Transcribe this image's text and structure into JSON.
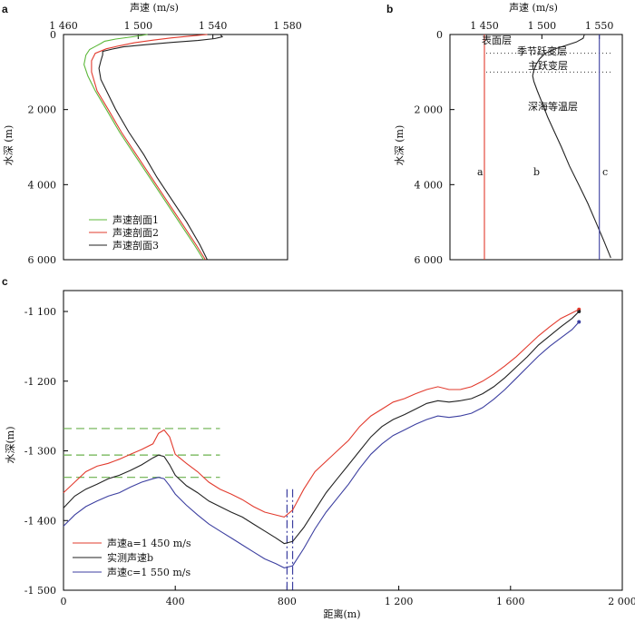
{
  "chart_data": [
    {
      "panel": "a",
      "type": "line",
      "xlabel": "声速 (m/s)",
      "ylabel": "水深 (m)",
      "xlim": [
        1460,
        1580
      ],
      "ylim": [
        0,
        6000
      ],
      "y_inverted": true,
      "x_axis_position": "top",
      "xticks": [
        1460,
        1500,
        1540,
        1580
      ],
      "xtick_labels": [
        "1 460",
        "1 500",
        "1 540",
        "1 580"
      ],
      "yticks": [
        0,
        2000,
        4000,
        6000
      ],
      "ytick_labels": [
        "0",
        "2 000",
        "4 000",
        "6 000"
      ],
      "legend_position": "bottom-left",
      "series": [
        {
          "name": "声速剖面1",
          "color": "#5cb83a",
          "points": [
            [
              1505,
              0
            ],
            [
              1497,
              60
            ],
            [
              1488,
              120
            ],
            [
              1482,
              180
            ],
            [
              1480,
              240
            ],
            [
              1477,
              320
            ],
            [
              1474,
              400
            ],
            [
              1472,
              550
            ],
            [
              1471,
              800
            ],
            [
              1473,
              1100
            ],
            [
              1477,
              1500
            ],
            [
              1483,
              2000
            ],
            [
              1490,
              2600
            ],
            [
              1498,
              3200
            ],
            [
              1506,
              3800
            ],
            [
              1514,
              4400
            ],
            [
              1522,
              5000
            ],
            [
              1530,
              5600
            ],
            [
              1535,
              6000
            ]
          ]
        },
        {
          "name": "声速剖面2",
          "color": "#e23b2e",
          "points": [
            [
              1537,
              0
            ],
            [
              1528,
              40
            ],
            [
              1518,
              90
            ],
            [
              1508,
              150
            ],
            [
              1498,
              220
            ],
            [
              1490,
              300
            ],
            [
              1483,
              380
            ],
            [
              1477,
              500
            ],
            [
              1475,
              700
            ],
            [
              1475,
              1000
            ],
            [
              1478,
              1500
            ],
            [
              1484,
              2000
            ],
            [
              1491,
              2600
            ],
            [
              1499,
              3200
            ],
            [
              1507,
              3800
            ],
            [
              1515,
              4400
            ],
            [
              1523,
              5000
            ],
            [
              1531,
              5600
            ],
            [
              1536,
              6000
            ]
          ]
        },
        {
          "name": "声速剖面3",
          "color": "#222222",
          "points": [
            [
              1544,
              0
            ],
            [
              1545,
              60
            ],
            [
              1541,
              110
            ],
            [
              1532,
              160
            ],
            [
              1518,
              210
            ],
            [
              1504,
              270
            ],
            [
              1492,
              330
            ],
            [
              1486,
              390
            ],
            [
              1481,
              450
            ],
            [
              1481,
              540
            ],
            [
              1480,
              700
            ],
            [
              1479,
              900
            ],
            [
              1480,
              1200
            ],
            [
              1484,
              1600
            ],
            [
              1488,
              2000
            ],
            [
              1495,
              2600
            ],
            [
              1503,
              3200
            ],
            [
              1510,
              3800
            ],
            [
              1518,
              4400
            ],
            [
              1526,
              5000
            ],
            [
              1533,
              5600
            ],
            [
              1537,
              6000
            ]
          ]
        }
      ]
    },
    {
      "panel": "b",
      "type": "line",
      "xlabel": "声速 (m/s)",
      "ylabel": "水深 (m)",
      "xlim": [
        1420,
        1570
      ],
      "ylim": [
        0,
        6000
      ],
      "y_inverted": true,
      "x_axis_position": "top",
      "xticks": [
        1450,
        1500,
        1550
      ],
      "xtick_labels": [
        "1 450",
        "1 500",
        "1 550"
      ],
      "yticks": [
        0,
        2000,
        4000,
        6000
      ],
      "ytick_labels": [
        "0",
        "2 000",
        "4 000",
        "6 000"
      ],
      "dotted_boundaries_depth": [
        500,
        1000
      ],
      "layer_labels": [
        "表面层",
        "季节跃变层",
        "主跃变层",
        "深海等温层"
      ],
      "curve_labels": [
        "a",
        "b",
        "c"
      ],
      "series": [
        {
          "name": "a",
          "color": "#e23b2e",
          "points": [
            [
              1450,
              0
            ],
            [
              1450,
              6000
            ]
          ]
        },
        {
          "name": "b",
          "color": "#222222",
          "points": [
            [
              1537,
              0
            ],
            [
              1536,
              100
            ],
            [
              1530,
              200
            ],
            [
              1520,
              300
            ],
            [
              1510,
              400
            ],
            [
              1503,
              500
            ],
            [
              1498,
              650
            ],
            [
              1495,
              800
            ],
            [
              1493,
              950
            ],
            [
              1492,
              1100
            ],
            [
              1493,
              1250
            ],
            [
              1496,
              1500
            ],
            [
              1500,
              1800
            ],
            [
              1505,
              2200
            ],
            [
              1511,
              2600
            ],
            [
              1517,
              3000
            ],
            [
              1524,
              3500
            ],
            [
              1532,
              4000
            ],
            [
              1540,
              4500
            ],
            [
              1547,
              5000
            ],
            [
              1554,
              5500
            ],
            [
              1560,
              5950
            ]
          ]
        },
        {
          "name": "c",
          "color": "#3c3fa0",
          "points": [
            [
              1550,
              0
            ],
            [
              1550,
              6000
            ]
          ]
        }
      ]
    },
    {
      "panel": "c",
      "type": "line",
      "xlabel": "距离(m)",
      "ylabel": "水深(m)",
      "xlim": [
        0,
        2000
      ],
      "ylim": [
        -1500,
        -1070
      ],
      "xticks": [
        0,
        400,
        800,
        1200,
        1600,
        2000
      ],
      "xtick_labels": [
        "0",
        "400",
        "800",
        "1 200",
        "1 600",
        "2 000"
      ],
      "yticks": [
        -1500,
        -1400,
        -1300,
        -1200,
        -1100
      ],
      "ytick_labels": [
        "-1 500",
        "-1 400",
        "-1 300",
        "-1 200",
        "-1 100"
      ],
      "dashed_hlines_depth": [
        -1268,
        -1306,
        -1338
      ],
      "dashed_vlines_x": [
        800,
        820
      ],
      "legend_position": "bottom-left",
      "series": [
        {
          "name": "声速a=1 450 m/s",
          "color": "#e23b2e",
          "points": [
            [
              0,
              -1360
            ],
            [
              40,
              -1345
            ],
            [
              80,
              -1330
            ],
            [
              120,
              -1322
            ],
            [
              160,
              -1318
            ],
            [
              200,
              -1312
            ],
            [
              240,
              -1305
            ],
            [
              280,
              -1298
            ],
            [
              320,
              -1290
            ],
            [
              340,
              -1275
            ],
            [
              360,
              -1270
            ],
            [
              380,
              -1280
            ],
            [
              400,
              -1305
            ],
            [
              440,
              -1318
            ],
            [
              480,
              -1330
            ],
            [
              520,
              -1345
            ],
            [
              560,
              -1355
            ],
            [
              600,
              -1362
            ],
            [
              640,
              -1370
            ],
            [
              680,
              -1380
            ],
            [
              720,
              -1388
            ],
            [
              760,
              -1392
            ],
            [
              790,
              -1395
            ],
            [
              820,
              -1385
            ],
            [
              860,
              -1355
            ],
            [
              900,
              -1330
            ],
            [
              940,
              -1315
            ],
            [
              980,
              -1300
            ],
            [
              1020,
              -1285
            ],
            [
              1060,
              -1265
            ],
            [
              1100,
              -1250
            ],
            [
              1140,
              -1240
            ],
            [
              1180,
              -1230
            ],
            [
              1220,
              -1225
            ],
            [
              1260,
              -1218
            ],
            [
              1300,
              -1212
            ],
            [
              1340,
              -1208
            ],
            [
              1380,
              -1212
            ],
            [
              1420,
              -1212
            ],
            [
              1460,
              -1208
            ],
            [
              1500,
              -1200
            ],
            [
              1540,
              -1190
            ],
            [
              1580,
              -1178
            ],
            [
              1620,
              -1165
            ],
            [
              1660,
              -1150
            ],
            [
              1700,
              -1135
            ],
            [
              1740,
              -1122
            ],
            [
              1780,
              -1110
            ],
            [
              1820,
              -1102
            ],
            [
              1845,
              -1097
            ]
          ]
        },
        {
          "name": "实测声速b",
          "color": "#222222",
          "points": [
            [
              0,
              -1382
            ],
            [
              40,
              -1365
            ],
            [
              80,
              -1355
            ],
            [
              120,
              -1348
            ],
            [
              160,
              -1340
            ],
            [
              200,
              -1335
            ],
            [
              240,
              -1328
            ],
            [
              280,
              -1320
            ],
            [
              320,
              -1310
            ],
            [
              340,
              -1306
            ],
            [
              360,
              -1308
            ],
            [
              380,
              -1320
            ],
            [
              400,
              -1335
            ],
            [
              440,
              -1350
            ],
            [
              480,
              -1360
            ],
            [
              520,
              -1372
            ],
            [
              560,
              -1380
            ],
            [
              600,
              -1388
            ],
            [
              640,
              -1395
            ],
            [
              680,
              -1405
            ],
            [
              720,
              -1415
            ],
            [
              760,
              -1425
            ],
            [
              790,
              -1433
            ],
            [
              820,
              -1430
            ],
            [
              860,
              -1410
            ],
            [
              900,
              -1385
            ],
            [
              940,
              -1360
            ],
            [
              980,
              -1340
            ],
            [
              1020,
              -1320
            ],
            [
              1060,
              -1300
            ],
            [
              1100,
              -1280
            ],
            [
              1140,
              -1265
            ],
            [
              1180,
              -1255
            ],
            [
              1220,
              -1248
            ],
            [
              1260,
              -1240
            ],
            [
              1300,
              -1232
            ],
            [
              1340,
              -1228
            ],
            [
              1380,
              -1230
            ],
            [
              1420,
              -1228
            ],
            [
              1460,
              -1225
            ],
            [
              1500,
              -1218
            ],
            [
              1540,
              -1208
            ],
            [
              1580,
              -1195
            ],
            [
              1620,
              -1180
            ],
            [
              1660,
              -1165
            ],
            [
              1700,
              -1148
            ],
            [
              1740,
              -1135
            ],
            [
              1780,
              -1122
            ],
            [
              1820,
              -1110
            ],
            [
              1845,
              -1100
            ]
          ]
        },
        {
          "name": "声速c=1 550 m/s",
          "color": "#3c3fa0",
          "points": [
            [
              0,
              -1408
            ],
            [
              40,
              -1392
            ],
            [
              80,
              -1380
            ],
            [
              120,
              -1372
            ],
            [
              160,
              -1365
            ],
            [
              200,
              -1360
            ],
            [
              240,
              -1352
            ],
            [
              280,
              -1345
            ],
            [
              320,
              -1340
            ],
            [
              340,
              -1338
            ],
            [
              360,
              -1340
            ],
            [
              380,
              -1350
            ],
            [
              400,
              -1362
            ],
            [
              440,
              -1378
            ],
            [
              480,
              -1392
            ],
            [
              520,
              -1405
            ],
            [
              560,
              -1415
            ],
            [
              600,
              -1425
            ],
            [
              640,
              -1435
            ],
            [
              680,
              -1445
            ],
            [
              720,
              -1455
            ],
            [
              760,
              -1462
            ],
            [
              790,
              -1468
            ],
            [
              820,
              -1465
            ],
            [
              860,
              -1440
            ],
            [
              900,
              -1412
            ],
            [
              940,
              -1388
            ],
            [
              980,
              -1368
            ],
            [
              1020,
              -1348
            ],
            [
              1060,
              -1325
            ],
            [
              1100,
              -1305
            ],
            [
              1140,
              -1290
            ],
            [
              1180,
              -1278
            ],
            [
              1220,
              -1270
            ],
            [
              1260,
              -1262
            ],
            [
              1300,
              -1255
            ],
            [
              1340,
              -1250
            ],
            [
              1380,
              -1252
            ],
            [
              1420,
              -1250
            ],
            [
              1460,
              -1246
            ],
            [
              1500,
              -1238
            ],
            [
              1540,
              -1226
            ],
            [
              1580,
              -1212
            ],
            [
              1620,
              -1196
            ],
            [
              1660,
              -1180
            ],
            [
              1700,
              -1164
            ],
            [
              1740,
              -1150
            ],
            [
              1780,
              -1138
            ],
            [
              1820,
              -1126
            ],
            [
              1845,
              -1115
            ]
          ]
        }
      ]
    }
  ]
}
